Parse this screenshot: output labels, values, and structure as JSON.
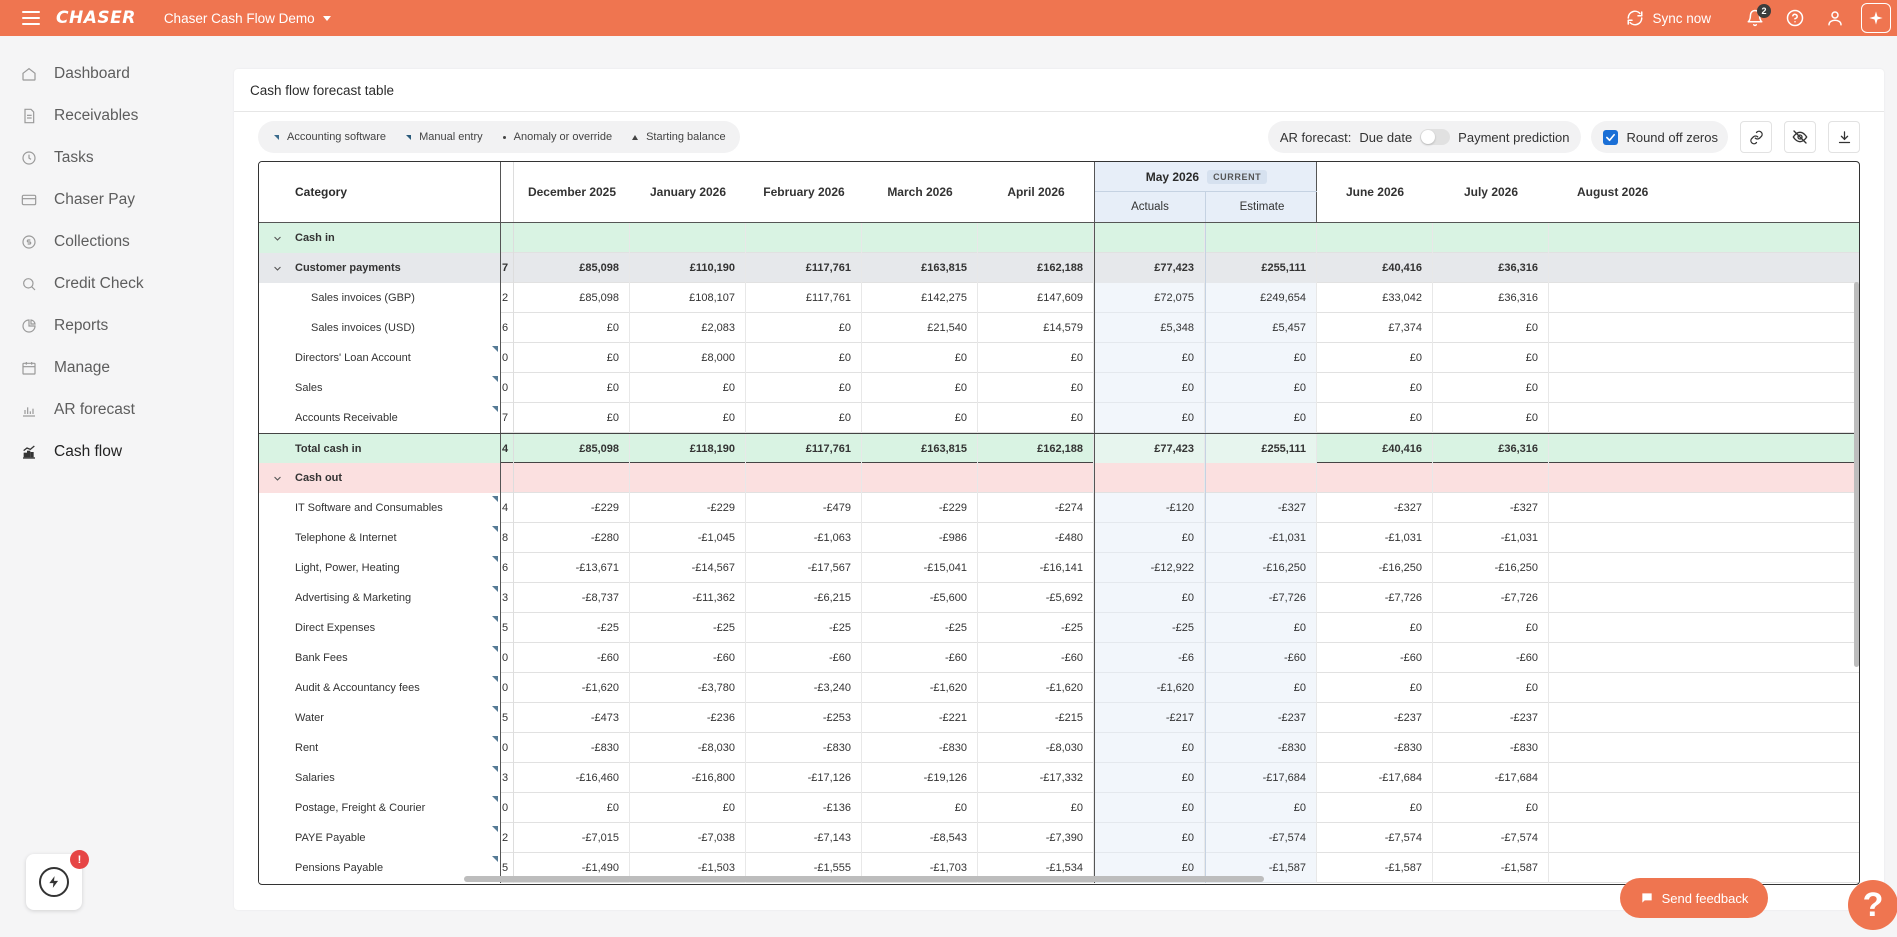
{
  "topbar": {
    "logo": "CHASER",
    "workspace": "Chaser Cash Flow Demo",
    "sync_label": "Sync now",
    "notification_count": "2",
    "brand_color": "#ef7550"
  },
  "sidebar": {
    "items": [
      {
        "label": "Dashboard",
        "icon": "home-icon"
      },
      {
        "label": "Receivables",
        "icon": "document-icon"
      },
      {
        "label": "Tasks",
        "icon": "clock-icon"
      },
      {
        "label": "Chaser Pay",
        "icon": "card-icon"
      },
      {
        "label": "Collections",
        "icon": "coin-icon"
      },
      {
        "label": "Credit Check",
        "icon": "search-icon"
      },
      {
        "label": "Reports",
        "icon": "pie-icon"
      },
      {
        "label": "Manage",
        "icon": "calendar-icon"
      },
      {
        "label": "AR forecast",
        "icon": "bars-icon"
      },
      {
        "label": "Cash flow",
        "icon": "trend-icon"
      }
    ],
    "active": "Cash flow",
    "help_badge": "!"
  },
  "card": {
    "title": "Cash flow forecast table",
    "legend": [
      {
        "label": "Accounting software",
        "mark": "triangle"
      },
      {
        "label": "Manual entry",
        "mark": "triangle"
      },
      {
        "label": "Anomaly or override",
        "mark": "dot"
      },
      {
        "label": "Starting balance",
        "mark": "up-triangle"
      }
    ],
    "ar_forecast_label": "AR forecast:",
    "due_date_label": "Due date",
    "payment_prediction_label": "Payment prediction",
    "round_off_label": "Round off zeros",
    "round_off_checked": true
  },
  "table": {
    "category_header": "Category",
    "months_left": [
      "December 2025",
      "January 2026",
      "February 2026",
      "March 2026",
      "April 2026"
    ],
    "current_month": "May 2026",
    "current_badge": "CURRENT",
    "current_sub": [
      "Actuals",
      "Estimate"
    ],
    "months_right": [
      "June 2026",
      "July 2026",
      "August 2026"
    ],
    "rows": [
      {
        "type": "section-in",
        "label": "Cash in",
        "stub": "",
        "values": [
          "",
          "",
          "",
          "",
          "",
          "",
          "",
          "",
          ""
        ]
      },
      {
        "type": "group",
        "label": "Customer payments",
        "stub": "7",
        "values": [
          "£85,098",
          "£110,190",
          "£117,761",
          "£163,815",
          "£162,188",
          "£77,423",
          "£255,111",
          "£40,416",
          "£36,316"
        ]
      },
      {
        "type": "sub",
        "label": "Sales invoices (GBP)",
        "stub": "2",
        "values": [
          "£85,098",
          "£108,107",
          "£117,761",
          "£142,275",
          "£147,609",
          "£72,075",
          "£249,654",
          "£33,042",
          "£36,316"
        ]
      },
      {
        "type": "sub",
        "label": "Sales invoices (USD)",
        "stub": "6",
        "values": [
          "£0",
          "£2,083",
          "£0",
          "£21,540",
          "£14,579",
          "£5,348",
          "£5,457",
          "£7,374",
          "£0"
        ]
      },
      {
        "type": "item",
        "label": "Directors' Loan Account",
        "stub": "0",
        "values": [
          "£0",
          "£8,000",
          "£0",
          "£0",
          "£0",
          "£0",
          "£0",
          "£0",
          "£0"
        ]
      },
      {
        "type": "item",
        "label": "Sales",
        "stub": "0",
        "values": [
          "£0",
          "£0",
          "£0",
          "£0",
          "£0",
          "£0",
          "£0",
          "£0",
          "£0"
        ]
      },
      {
        "type": "item",
        "label": "Accounts Receivable",
        "stub": "7",
        "values": [
          "£0",
          "£0",
          "£0",
          "£0",
          "£0",
          "£0",
          "£0",
          "£0",
          "£0"
        ]
      },
      {
        "type": "total",
        "label": "Total cash in",
        "stub": "4",
        "values": [
          "£85,098",
          "£118,190",
          "£117,761",
          "£163,815",
          "£162,188",
          "£77,423",
          "£255,111",
          "£40,416",
          "£36,316"
        ]
      },
      {
        "type": "section-out",
        "label": "Cash out",
        "stub": "",
        "values": [
          "",
          "",
          "",
          "",
          "",
          "",
          "",
          "",
          ""
        ]
      },
      {
        "type": "item",
        "label": "IT Software and Consumables",
        "stub": "4",
        "values": [
          "-£229",
          "-£229",
          "-£479",
          "-£229",
          "-£274",
          "-£120",
          "-£327",
          "-£327",
          "-£327"
        ]
      },
      {
        "type": "item",
        "label": "Telephone & Internet",
        "stub": "8",
        "values": [
          "-£280",
          "-£1,045",
          "-£1,063",
          "-£986",
          "-£480",
          "£0",
          "-£1,031",
          "-£1,031",
          "-£1,031"
        ]
      },
      {
        "type": "item",
        "label": "Light, Power, Heating",
        "stub": "6",
        "values": [
          "-£13,671",
          "-£14,567",
          "-£17,567",
          "-£15,041",
          "-£16,141",
          "-£12,922",
          "-£16,250",
          "-£16,250",
          "-£16,250"
        ]
      },
      {
        "type": "item",
        "label": "Advertising & Marketing",
        "stub": "3",
        "values": [
          "-£8,737",
          "-£11,362",
          "-£6,215",
          "-£5,600",
          "-£5,692",
          "£0",
          "-£7,726",
          "-£7,726",
          "-£7,726"
        ]
      },
      {
        "type": "item",
        "label": "Direct Expenses",
        "stub": "5",
        "values": [
          "-£25",
          "-£25",
          "-£25",
          "-£25",
          "-£25",
          "-£25",
          "£0",
          "£0",
          "£0"
        ]
      },
      {
        "type": "item",
        "label": "Bank Fees",
        "stub": "0",
        "values": [
          "-£60",
          "-£60",
          "-£60",
          "-£60",
          "-£60",
          "-£6",
          "-£60",
          "-£60",
          "-£60"
        ]
      },
      {
        "type": "item",
        "label": "Audit & Accountancy fees",
        "stub": "0",
        "values": [
          "-£1,620",
          "-£3,780",
          "-£3,240",
          "-£1,620",
          "-£1,620",
          "-£1,620",
          "£0",
          "£0",
          "£0"
        ]
      },
      {
        "type": "item",
        "label": "Water",
        "stub": "5",
        "values": [
          "-£473",
          "-£236",
          "-£253",
          "-£221",
          "-£215",
          "-£217",
          "-£237",
          "-£237",
          "-£237"
        ]
      },
      {
        "type": "item",
        "label": "Rent",
        "stub": "0",
        "values": [
          "-£830",
          "-£8,030",
          "-£830",
          "-£830",
          "-£8,030",
          "£0",
          "-£830",
          "-£830",
          "-£830"
        ]
      },
      {
        "type": "item",
        "label": "Salaries",
        "stub": "3",
        "values": [
          "-£16,460",
          "-£16,800",
          "-£17,126",
          "-£19,126",
          "-£17,332",
          "£0",
          "-£17,684",
          "-£17,684",
          "-£17,684"
        ]
      },
      {
        "type": "item",
        "label": "Postage, Freight & Courier",
        "stub": "0",
        "values": [
          "£0",
          "£0",
          "-£136",
          "£0",
          "£0",
          "£0",
          "£0",
          "£0",
          "£0"
        ]
      },
      {
        "type": "item",
        "label": "PAYE Payable",
        "stub": "2",
        "values": [
          "-£7,015",
          "-£7,038",
          "-£7,143",
          "-£8,543",
          "-£7,390",
          "£0",
          "-£7,574",
          "-£7,574",
          "-£7,574"
        ]
      },
      {
        "type": "item",
        "label": "Pensions Payable",
        "stub": "5",
        "values": [
          "-£1,490",
          "-£1,503",
          "-£1,555",
          "-£1,703",
          "-£1,534",
          "£0",
          "-£1,587",
          "-£1,587",
          "-£1,587"
        ]
      }
    ]
  },
  "feedback_label": "Send feedback",
  "help_fab_label": "?"
}
